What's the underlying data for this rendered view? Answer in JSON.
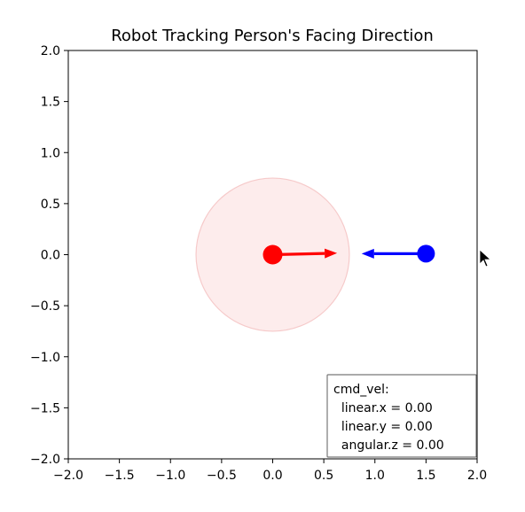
{
  "chart_data": {
    "type": "scatter",
    "title": "Robot Tracking Person's Facing Direction",
    "xlabel": "",
    "ylabel": "",
    "xlim": [
      -2.0,
      2.0
    ],
    "ylim": [
      -2.0,
      2.0
    ],
    "grid": false,
    "x_ticks": [
      "−2.0",
      "−1.5",
      "−1.0",
      "−0.5",
      "0.0",
      "0.5",
      "1.0",
      "1.5",
      "2.0"
    ],
    "y_ticks": [
      "2.0",
      "1.5",
      "1.0",
      "0.5",
      "0.0",
      "−0.5",
      "−1.0",
      "−1.5",
      "−2.0"
    ],
    "x_tick_values": [
      -2.0,
      -1.5,
      -1.0,
      -0.5,
      0.0,
      0.5,
      1.0,
      1.5,
      2.0
    ],
    "y_tick_values": [
      2.0,
      1.5,
      1.0,
      0.5,
      0.0,
      -0.5,
      -1.0,
      -1.5,
      -2.0
    ],
    "range_circle": {
      "center": [
        0.0,
        0.0
      ],
      "radius": 0.75,
      "fill": "#fdecec",
      "stroke": "#f6caca"
    },
    "robot": {
      "x": 0.0,
      "y": 0.0,
      "color": "#ff0000",
      "arrow_to": [
        0.63,
        0.015
      ]
    },
    "person": {
      "x": 1.5,
      "y": 0.01,
      "color": "#0000ff",
      "arrow_to": [
        0.87,
        0.01
      ]
    },
    "text_box": {
      "lines": [
        "cmd_vel:",
        "  linear.x = 0.00",
        "  linear.y = 0.00",
        "  angular.z = 0.00"
      ],
      "placement": "lower-right"
    }
  }
}
